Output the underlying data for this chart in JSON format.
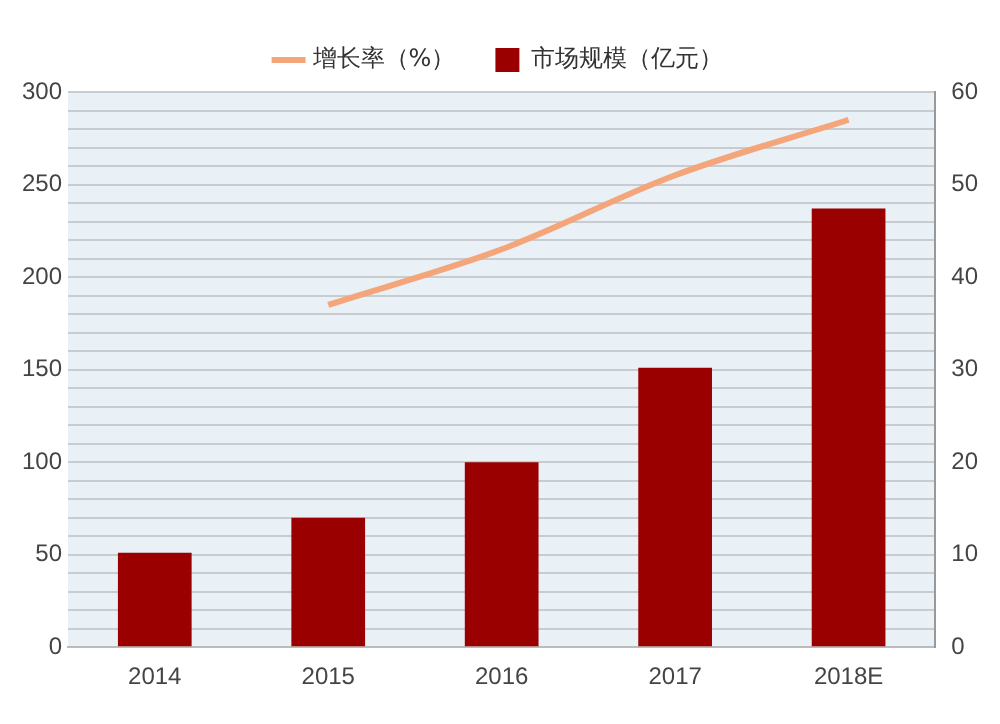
{
  "chart_data": {
    "type": "bar",
    "categories": [
      "2014",
      "2015",
      "2016",
      "2017",
      "2018E"
    ],
    "series": [
      {
        "name": "市场规模（亿元）",
        "color": "#9b0000",
        "values": [
          51,
          70,
          100,
          151,
          237
        ]
      },
      {
        "name": "增长率（%）",
        "type": "line",
        "axis": "y2",
        "color": "#f4a57a",
        "values": [
          null,
          37,
          43,
          51,
          57
        ]
      }
    ],
    "ylim": [
      0,
      300
    ],
    "yticks": [
      0,
      {
        "value": 10,
        "label": null
      },
      {
        "value": 20,
        "label": null
      },
      {
        "value": 30,
        "label": null
      },
      {
        "value": 40,
        "label": null
      },
      50,
      {
        "value": 60,
        "label": null
      },
      {
        "value": 70,
        "label": null
      },
      {
        "value": 80,
        "label": null
      },
      {
        "value": 90,
        "label": null
      },
      100,
      {
        "value": 110,
        "label": null
      },
      {
        "value": 120,
        "label": null
      },
      {
        "value": 130,
        "label": null
      },
      {
        "value": 140,
        "label": null
      },
      150,
      {
        "value": 160,
        "label": null
      },
      {
        "value": 170,
        "label": null
      },
      {
        "value": 180,
        "label": null
      },
      {
        "value": 190,
        "label": null
      },
      200,
      {
        "value": 210,
        "label": null
      },
      {
        "value": 220,
        "label": null
      },
      {
        "value": 230,
        "label": null
      },
      {
        "value": 240,
        "label": null
      },
      250,
      {
        "value": 260,
        "label": null
      },
      {
        "value": 270,
        "label": null
      },
      {
        "value": 280,
        "label": null
      },
      {
        "value": 290,
        "label": null
      },
      300
    ],
    "y2lim": [
      0,
      60
    ],
    "y2ticks": [
      0,
      10,
      20,
      30,
      40,
      50,
      60
    ],
    "grid": "y",
    "legend": "top",
    "marker": "none",
    "line_style": "solid"
  }
}
